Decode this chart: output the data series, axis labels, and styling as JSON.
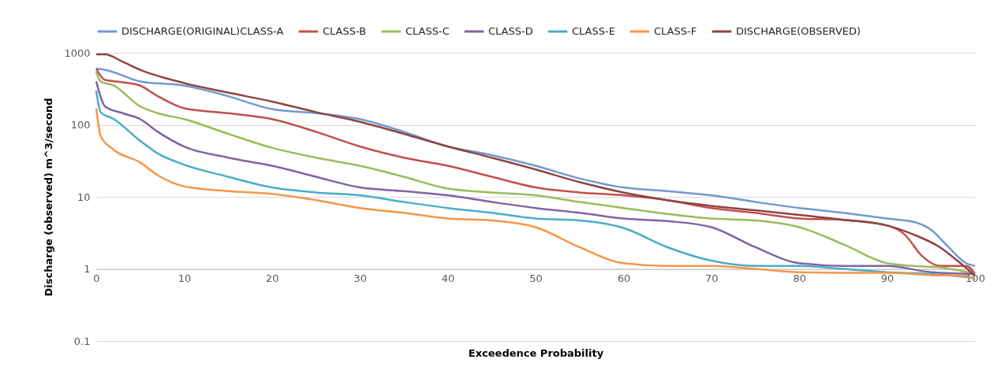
{
  "chart_data": {
    "type": "line",
    "xlabel": "Exceedence Probability",
    "ylabel": "Discharge (observed) m^3/second",
    "log": "y",
    "grid": "y",
    "legend": "top",
    "xlim": [
      0,
      100
    ],
    "xticks": [
      0,
      10,
      20,
      30,
      40,
      50,
      60,
      70,
      80,
      90,
      100
    ],
    "ylim": [
      0.1,
      1000
    ],
    "yticks": [
      0.1,
      1,
      10,
      100,
      1000
    ],
    "series": [
      {
        "name": "DISCHARGE(ORIGINAL)CLASS-A",
        "color": "#7199d0",
        "x": [
          0,
          1,
          5,
          10,
          15,
          20,
          25,
          30,
          35,
          40,
          45,
          50,
          55,
          60,
          65,
          70,
          75,
          80,
          85,
          90,
          93,
          95,
          97,
          99,
          100
        ],
        "values": [
          600,
          580,
          400,
          350,
          250,
          165,
          145,
          120,
          80,
          50,
          38,
          27,
          18,
          13.5,
          12,
          10.5,
          8.5,
          7,
          6,
          5,
          4.5,
          3.5,
          2,
          1.2,
          1.1
        ]
      },
      {
        "name": "CLASS-B",
        "color": "#c0504d",
        "x": [
          0,
          1,
          3,
          5,
          7,
          10,
          15,
          20,
          25,
          30,
          35,
          40,
          45,
          50,
          55,
          60,
          65,
          70,
          75,
          80,
          85,
          90,
          92,
          94,
          96,
          99,
          100
        ],
        "values": [
          600,
          420,
          390,
          350,
          250,
          170,
          145,
          120,
          80,
          50,
          35,
          27,
          19,
          13.5,
          11.5,
          10.5,
          9,
          7,
          6,
          5,
          4.8,
          4,
          3,
          1.5,
          1.1,
          1.1,
          0.85
        ]
      },
      {
        "name": "CLASS-C",
        "color": "#9bbb59",
        "x": [
          0,
          0.5,
          2,
          5,
          7,
          10,
          15,
          20,
          25,
          30,
          35,
          40,
          45,
          50,
          55,
          60,
          65,
          70,
          75,
          80,
          85,
          90,
          93,
          96,
          100
        ],
        "values": [
          550,
          400,
          350,
          180,
          145,
          120,
          75,
          48,
          35,
          27,
          19,
          13,
          11.5,
          10.5,
          8.5,
          7,
          5.8,
          5,
          4.7,
          3.8,
          2.2,
          1.2,
          1.1,
          1.05,
          0.85
        ]
      },
      {
        "name": "CLASS-D",
        "color": "#8064a2",
        "x": [
          0,
          1,
          3,
          5,
          7,
          10,
          15,
          20,
          25,
          30,
          35,
          40,
          45,
          50,
          55,
          60,
          65,
          70,
          75,
          80,
          85,
          90,
          95,
          100
        ],
        "values": [
          400,
          180,
          145,
          120,
          80,
          50,
          35,
          27,
          19,
          13.5,
          12,
          10.5,
          8.5,
          7,
          6,
          5,
          4.6,
          3.8,
          2,
          1.2,
          1.1,
          1.1,
          0.9,
          0.85
        ]
      },
      {
        "name": "CLASS-E",
        "color": "#4bacc6",
        "x": [
          0,
          0.5,
          2,
          5,
          7,
          10,
          15,
          20,
          25,
          30,
          35,
          40,
          45,
          50,
          55,
          60,
          65,
          70,
          75,
          80,
          85,
          90,
          95,
          100
        ],
        "values": [
          300,
          150,
          120,
          60,
          40,
          28,
          19,
          13.5,
          11.5,
          10.5,
          8.5,
          7,
          6,
          5,
          4.7,
          3.7,
          2,
          1.3,
          1.1,
          1.1,
          1,
          0.9,
          0.85,
          0.75
        ]
      },
      {
        "name": "CLASS-F",
        "color": "#f79646",
        "x": [
          0,
          0.5,
          2,
          5,
          7,
          10,
          15,
          20,
          25,
          30,
          35,
          40,
          45,
          50,
          55,
          60,
          65,
          70,
          75,
          80,
          85,
          90,
          95,
          99,
          100
        ],
        "values": [
          170,
          70,
          45,
          30,
          20,
          14,
          12,
          11,
          9,
          7,
          6,
          5,
          4.7,
          3.8,
          2,
          1.2,
          1.1,
          1.1,
          1,
          0.9,
          0.88,
          0.88,
          0.82,
          0.8,
          0.7
        ]
      },
      {
        "name": "DISCHARGE(OBSERVED)",
        "color": "#8f4543",
        "x": [
          0,
          1,
          3,
          5,
          10,
          15,
          20,
          25,
          30,
          35,
          40,
          45,
          50,
          55,
          60,
          65,
          70,
          75,
          80,
          85,
          90,
          93,
          96,
          98,
          100
        ],
        "values": [
          950,
          950,
          750,
          580,
          380,
          280,
          210,
          150,
          110,
          75,
          50,
          35,
          24,
          16,
          11.5,
          9,
          7.5,
          6.5,
          5.6,
          4.8,
          4,
          3,
          2,
          1.3,
          0.8
        ]
      }
    ]
  }
}
